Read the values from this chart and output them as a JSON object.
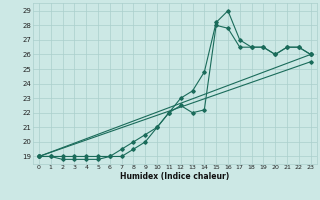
{
  "xlabel": "Humidex (Indice chaleur)",
  "bg_color": "#cce8e5",
  "grid_color": "#aacfcc",
  "line_color": "#1a6b5a",
  "xlim": [
    -0.5,
    23.5
  ],
  "ylim": [
    18.5,
    29.5
  ],
  "xticks": [
    0,
    1,
    2,
    3,
    4,
    5,
    6,
    7,
    8,
    9,
    10,
    11,
    12,
    13,
    14,
    15,
    16,
    17,
    18,
    19,
    20,
    21,
    22,
    23
  ],
  "yticks": [
    19,
    20,
    21,
    22,
    23,
    24,
    25,
    26,
    27,
    28,
    29
  ],
  "line1_x": [
    0,
    1,
    2,
    3,
    4,
    5,
    6,
    7,
    8,
    9,
    10,
    11,
    12,
    13,
    14,
    15,
    16,
    17,
    18,
    19,
    20,
    21,
    22,
    23
  ],
  "line1_y": [
    19,
    19,
    19,
    19,
    19,
    19,
    19,
    19,
    19.5,
    20,
    21,
    22,
    23,
    23.5,
    24.8,
    28.2,
    29,
    27,
    26.5,
    26.5,
    26,
    26.5,
    26.5,
    26
  ],
  "line2_x": [
    0,
    1,
    2,
    3,
    4,
    5,
    6,
    7,
    8,
    9,
    10,
    11,
    12,
    13,
    14,
    15,
    16,
    17,
    18,
    19,
    20,
    21,
    22,
    23
  ],
  "line2_y": [
    19,
    19,
    18.8,
    18.8,
    18.8,
    18.8,
    19,
    19.5,
    20,
    20.5,
    21,
    22,
    22.5,
    22,
    22.2,
    28,
    27.8,
    26.5,
    26.5,
    26.5,
    26,
    26.5,
    26.5,
    26
  ],
  "line3_x": [
    0,
    23
  ],
  "line3_y": [
    19,
    26
  ],
  "line4_x": [
    0,
    23
  ],
  "line4_y": [
    19,
    25.5
  ]
}
